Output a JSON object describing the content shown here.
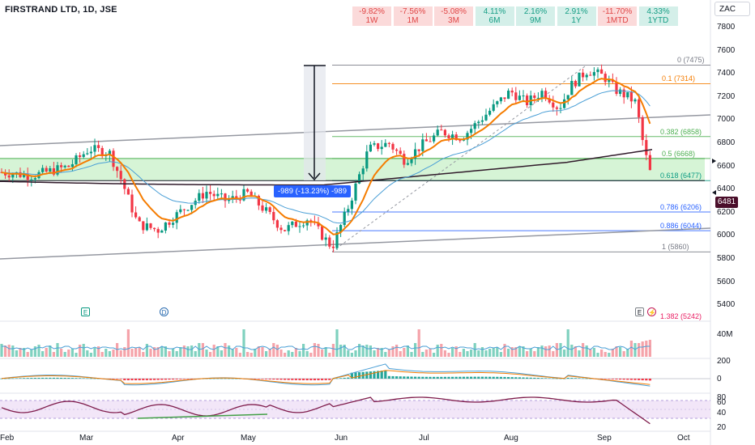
{
  "header": {
    "symbol_title": "FIRSTRAND LTD, 1D, JSE",
    "currency": "ZAC",
    "last_price": "6481",
    "measure_label": "-989 (-13.23%) -989"
  },
  "performance": [
    {
      "value": "-9.82%",
      "period": "1W",
      "dir": "neg"
    },
    {
      "value": "-7.56%",
      "period": "1M",
      "dir": "neg"
    },
    {
      "value": "-5.08%",
      "period": "3M",
      "dir": "neg"
    },
    {
      "value": "4.11%",
      "period": "6M",
      "dir": "pos"
    },
    {
      "value": "2.16%",
      "period": "9M",
      "dir": "pos"
    },
    {
      "value": "2.91%",
      "period": "1Y",
      "dir": "pos"
    },
    {
      "value": "-11.70%",
      "period": "1MTD",
      "dir": "neg"
    },
    {
      "value": "4.33%",
      "period": "1YTD",
      "dir": "pos"
    }
  ],
  "price_axis": [
    "7800",
    "7600",
    "7400",
    "7200",
    "7000",
    "6800",
    "6600",
    "6400",
    "6200",
    "6000",
    "5800",
    "5600",
    "5400"
  ],
  "volume_axis": [
    "40M"
  ],
  "macd_axis": [
    "200",
    "0"
  ],
  "rsi_axis": [
    "80",
    "60",
    "40",
    "20"
  ],
  "time_axis": [
    "Feb",
    "Mar",
    "Apr",
    "May",
    "Jun",
    "Jul",
    "Aug",
    "Sep",
    "Oct"
  ],
  "fib_levels": [
    {
      "label": "0 (7475)",
      "price": 7475,
      "color": "#787b86"
    },
    {
      "label": "0.1 (7314)",
      "price": 7314,
      "color": "#f57c00"
    },
    {
      "label": "0.382 (6858)",
      "price": 6858,
      "color": "#4caf50"
    },
    {
      "label": "0.5 (6668)",
      "price": 6668,
      "color": "#4caf50"
    },
    {
      "label": "0.618 (6477)",
      "price": 6477,
      "color": "#089981"
    },
    {
      "label": "0.786 (6206)",
      "price": 6206,
      "color": "#2962ff"
    },
    {
      "label": "0.886 (6044)",
      "price": 6044,
      "color": "#2962ff"
    },
    {
      "label": "1 (5860)",
      "price": 5860,
      "color": "#787b86"
    },
    {
      "label": "1.382 (5242)",
      "price": 5242,
      "color": "#e91e63"
    }
  ],
  "event_markers": [
    {
      "icon": "earnings-icon",
      "glyph": "E"
    },
    {
      "icon": "dividend-icon",
      "glyph": "D"
    },
    {
      "icon": "earnings-upcoming-icon",
      "glyph": "E"
    },
    {
      "icon": "split-icon",
      "glyph": "⚡"
    }
  ],
  "colors": {
    "up": "#089981",
    "down": "#f23645",
    "ema_fast": "#f57c00",
    "ema_mid": "#4a9fd6",
    "sma_slow": "#311b2b",
    "rsi": "#7e1b4b",
    "fib_zone": "#c8f0c8"
  }
}
